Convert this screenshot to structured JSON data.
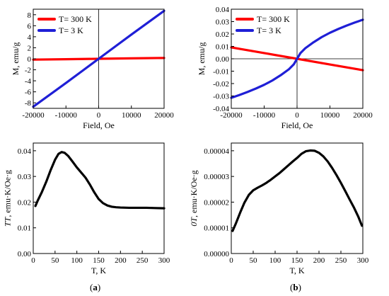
{
  "captions": {
    "a": "a",
    "b": "b"
  },
  "chart_data": [
    {
      "id": "top-left",
      "type": "line",
      "xlabel": "Field, Oe",
      "ylabel": "M, emu/g",
      "xlim": [
        -20000,
        20000
      ],
      "ylim": [
        -9,
        9
      ],
      "xticks": [
        -20000,
        -10000,
        0,
        10000,
        20000
      ],
      "xtick_labels": [
        "-20000",
        "-10000",
        "0",
        "10000",
        "20000"
      ],
      "yticks": [
        -8,
        -6,
        -4,
        -2,
        0,
        2,
        4,
        6,
        8
      ],
      "ytick_labels": [
        "-8",
        "-6",
        "-4",
        "-2",
        "0",
        "2",
        "4",
        "6",
        "8"
      ],
      "zero_lines": true,
      "legend_position": "top-left",
      "series": [
        {
          "name": "T= 300 K",
          "color": "#ff0000",
          "x": [
            -20000,
            -10000,
            0,
            10000,
            20000
          ],
          "y": [
            -0.15,
            -0.08,
            0,
            0.08,
            0.15
          ]
        },
        {
          "name": "T= 3 K",
          "color": "#1f1fd6",
          "x": [
            -20000,
            -15000,
            -10000,
            -5000,
            0,
            5000,
            10000,
            15000,
            20000
          ],
          "y": [
            -8.7,
            -6.55,
            -4.4,
            -2.2,
            0,
            2.2,
            4.4,
            6.55,
            8.7
          ]
        }
      ]
    },
    {
      "id": "top-right",
      "type": "line",
      "xlabel": "Field, Oe",
      "ylabel": "M, emu/g",
      "xlim": [
        -20000,
        20000
      ],
      "ylim": [
        -0.04,
        0.04
      ],
      "xticks": [
        -20000,
        -10000,
        0,
        10000,
        20000
      ],
      "xtick_labels": [
        "-20000",
        "-10000",
        "0",
        "10000",
        "20000"
      ],
      "yticks": [
        -0.04,
        -0.03,
        -0.02,
        -0.01,
        0,
        0.01,
        0.02,
        0.03,
        0.04
      ],
      "ytick_labels": [
        "-0.04",
        "-0.03",
        "-0.02",
        "-0.01",
        "0.00",
        "0.01",
        "0.02",
        "0.03",
        "0.04"
      ],
      "zero_lines": true,
      "legend_position": "top-left",
      "series": [
        {
          "name": "T= 300 K",
          "color": "#ff0000",
          "x": [
            -20000,
            -10000,
            0,
            10000,
            20000
          ],
          "y": [
            0.0092,
            0.0046,
            0,
            -0.0046,
            -0.0092
          ]
        },
        {
          "name": "T= 3 K",
          "color": "#1f1fd6",
          "x": [
            -20000,
            -17500,
            -15000,
            -12500,
            -10000,
            -7500,
            -5000,
            -2500,
            -1000,
            0,
            1000,
            2500,
            5000,
            7500,
            10000,
            12500,
            15000,
            17500,
            20000
          ],
          "y": [
            -0.0315,
            -0.0292,
            -0.0267,
            -0.024,
            -0.021,
            -0.0175,
            -0.0133,
            -0.0085,
            -0.0045,
            0,
            0.0045,
            0.0085,
            0.0133,
            0.0175,
            0.021,
            0.024,
            0.0267,
            0.0292,
            0.0315
          ]
        }
      ]
    },
    {
      "id": "bottom-left",
      "type": "line",
      "xlabel": "T, K",
      "ylabel": "TT, emu·K/Oe·g",
      "ylabel_italic_prefix": "TT",
      "ylabel_rest": ", emu·K/Oe·g",
      "xlim": [
        0,
        300
      ],
      "ylim": [
        0,
        0.043
      ],
      "xticks": [
        0,
        50,
        100,
        150,
        200,
        250,
        300
      ],
      "xtick_labels": [
        "0",
        "50",
        "100",
        "150",
        "200",
        "250",
        "300"
      ],
      "yticks": [
        0,
        0.01,
        0.02,
        0.03,
        0.04
      ],
      "ytick_labels": [
        "0.00",
        "0.01",
        "0.02",
        "0.03",
        "0.04"
      ],
      "series": [
        {
          "name": "",
          "color": "#000000",
          "x": [
            5,
            10,
            20,
            30,
            40,
            50,
            58,
            65,
            72,
            80,
            90,
            100,
            110,
            120,
            130,
            140,
            150,
            160,
            170,
            180,
            190,
            200,
            220,
            240,
            260,
            280,
            300
          ],
          "y": [
            0.0185,
            0.0205,
            0.024,
            0.028,
            0.0325,
            0.0365,
            0.0388,
            0.0395,
            0.0392,
            0.038,
            0.0358,
            0.0335,
            0.0315,
            0.0295,
            0.0268,
            0.0238,
            0.0212,
            0.0196,
            0.0187,
            0.0182,
            0.018,
            0.0179,
            0.0178,
            0.0178,
            0.0178,
            0.0177,
            0.0176
          ]
        }
      ]
    },
    {
      "id": "bottom-right",
      "type": "line",
      "xlabel": "T, K",
      "ylabel": "0T, emu·K/Oe·g",
      "ylabel_italic_prefix": "0T",
      "ylabel_rest": ", emu·K/Oe·g",
      "xlim": [
        0,
        300
      ],
      "ylim": [
        0,
        4.3e-05
      ],
      "xticks": [
        0,
        50,
        100,
        150,
        200,
        250,
        300
      ],
      "xtick_labels": [
        "0",
        "50",
        "100",
        "150",
        "200",
        "250",
        "300"
      ],
      "yticks": [
        0,
        1e-05,
        2e-05,
        3e-05,
        4e-05
      ],
      "ytick_labels": [
        "0.00000",
        "0.00001",
        "0.00002",
        "0.00003",
        "0.00004"
      ],
      "series": [
        {
          "name": "",
          "color": "#000000",
          "x": [
            3,
            10,
            20,
            30,
            40,
            50,
            60,
            70,
            80,
            90,
            100,
            110,
            120,
            130,
            140,
            150,
            160,
            170,
            180,
            190,
            200,
            210,
            220,
            230,
            240,
            250,
            260,
            270,
            280,
            290,
            298
          ],
          "y": [
            8.8e-06,
            1.15e-05,
            1.58e-05,
            1.98e-05,
            2.28e-05,
            2.46e-05,
            2.56e-05,
            2.65e-05,
            2.75e-05,
            2.87e-05,
            3e-05,
            3.13e-05,
            3.28e-05,
            3.43e-05,
            3.58e-05,
            3.72e-05,
            3.88e-05,
            3.98e-05,
            4.01e-05,
            4e-05,
            3.92e-05,
            3.78e-05,
            3.58e-05,
            3.33e-05,
            3.05e-05,
            2.75e-05,
            2.43e-05,
            2.1e-05,
            1.78e-05,
            1.42e-05,
            1.08e-05
          ]
        }
      ]
    }
  ]
}
